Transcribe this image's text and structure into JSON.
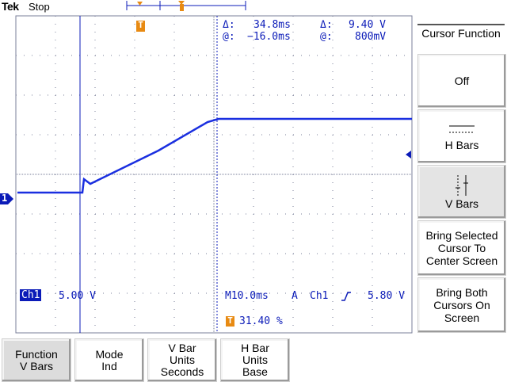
{
  "header": {
    "brand": "Tek",
    "status": "Stop"
  },
  "readout": {
    "delta_time_label": "Δ:",
    "delta_time": "34.8ms",
    "delta_volt_label": "Δ:",
    "delta_volt": "9.40 V",
    "at_time_label": "@:",
    "at_time": "−16.0ms",
    "at_volt_label": "@:",
    "at_volt": "800mV"
  },
  "channel": {
    "marker": "1",
    "name": "Ch1",
    "scale": "5.00 V"
  },
  "timebase": {
    "label": "M10.0ms",
    "mode": "A",
    "source": "Ch1",
    "slope_icon": "rising-edge-icon",
    "level": "5.80 V"
  },
  "trigger": {
    "marker": "T",
    "position": "31.40 %"
  },
  "side_menu": {
    "title": "Cursor Function",
    "items": [
      {
        "label": "Off"
      },
      {
        "label": "H Bars",
        "icon": "h-bars-icon"
      },
      {
        "label": "V Bars",
        "icon": "v-bars-icon",
        "selected": true
      },
      {
        "label": "Bring Selected Cursor To Center Screen"
      },
      {
        "label": "Bring Both Cursors On Screen"
      }
    ]
  },
  "bottom_menu": [
    {
      "line1": "Function",
      "line2": "V Bars",
      "selected": true
    },
    {
      "line1": "Mode",
      "line2": "Ind"
    },
    {
      "line1": "V Bar",
      "line2": "Units",
      "line3": "Seconds"
    },
    {
      "line1": "H Bar",
      "line2": "Units",
      "line3": "Base"
    }
  ],
  "colors": {
    "trace": "#1a2fe0",
    "text": "#0b1bb8",
    "trigger": "#e88a12"
  }
}
